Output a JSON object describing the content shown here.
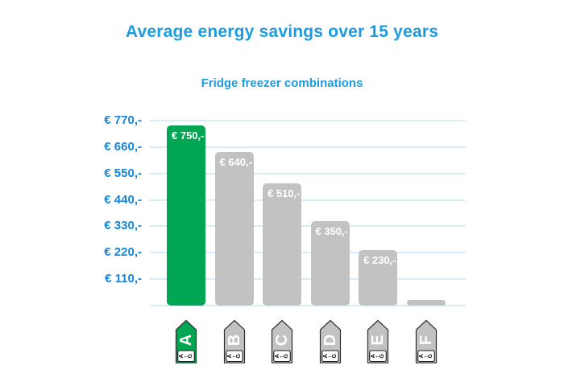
{
  "header": {
    "title": "Average energy savings over 15 years",
    "subtitle": "Fridge freezer combinations"
  },
  "chart_data": {
    "type": "bar",
    "title": "Average energy savings over 15 years",
    "subtitle": "Fridge freezer combinations",
    "categories": [
      "A",
      "B",
      "C",
      "D",
      "E",
      "F"
    ],
    "values": [
      750,
      640,
      510,
      350,
      230,
      25
    ],
    "bar_labels": [
      "€ 750,-",
      "€ 640,-",
      "€ 510,-",
      "€ 350,-",
      "€ 230,-",
      ""
    ],
    "y_ticks": [
      "€ 770,-",
      "€ 660,-",
      "€ 550,-",
      "€ 440,-",
      "€ 330,-",
      "€ 220,-",
      "€ 110,-"
    ],
    "ylim": [
      0,
      770
    ],
    "y_tick_step": 110,
    "grid": true,
    "legend": false,
    "xlabel": "",
    "ylabel": "",
    "bar_colors": [
      "#00a651",
      "#c2c2c2",
      "#c2c2c2",
      "#c2c2c2",
      "#c2c2c2",
      "#c2c2c2"
    ]
  },
  "energy_labels": [
    {
      "letter": "A",
      "scale_start": "A",
      "scale_arrow": "←",
      "scale_end": "G",
      "color": "#00a651"
    },
    {
      "letter": "B",
      "scale_start": "A",
      "scale_arrow": "←",
      "scale_end": "G",
      "color": "#c2c2c2"
    },
    {
      "letter": "C",
      "scale_start": "A",
      "scale_arrow": "←",
      "scale_end": "G",
      "color": "#c2c2c2"
    },
    {
      "letter": "D",
      "scale_start": "A",
      "scale_arrow": "←",
      "scale_end": "G",
      "color": "#c2c2c2"
    },
    {
      "letter": "E",
      "scale_start": "A",
      "scale_arrow": "←",
      "scale_end": "G",
      "color": "#c2c2c2"
    },
    {
      "letter": "F",
      "scale_start": "A",
      "scale_arrow": "←",
      "scale_end": "G",
      "color": "#c2c2c2"
    }
  ],
  "colors": {
    "title_blue": "#1b9ce2",
    "axis_blue": "#1685d9",
    "grid_blue": "#d7edfb",
    "bar_green": "#00a651",
    "bar_gray": "#c2c2c2",
    "bar_label_text": "#ffffff",
    "icon_border": "#2e2e2e"
  }
}
